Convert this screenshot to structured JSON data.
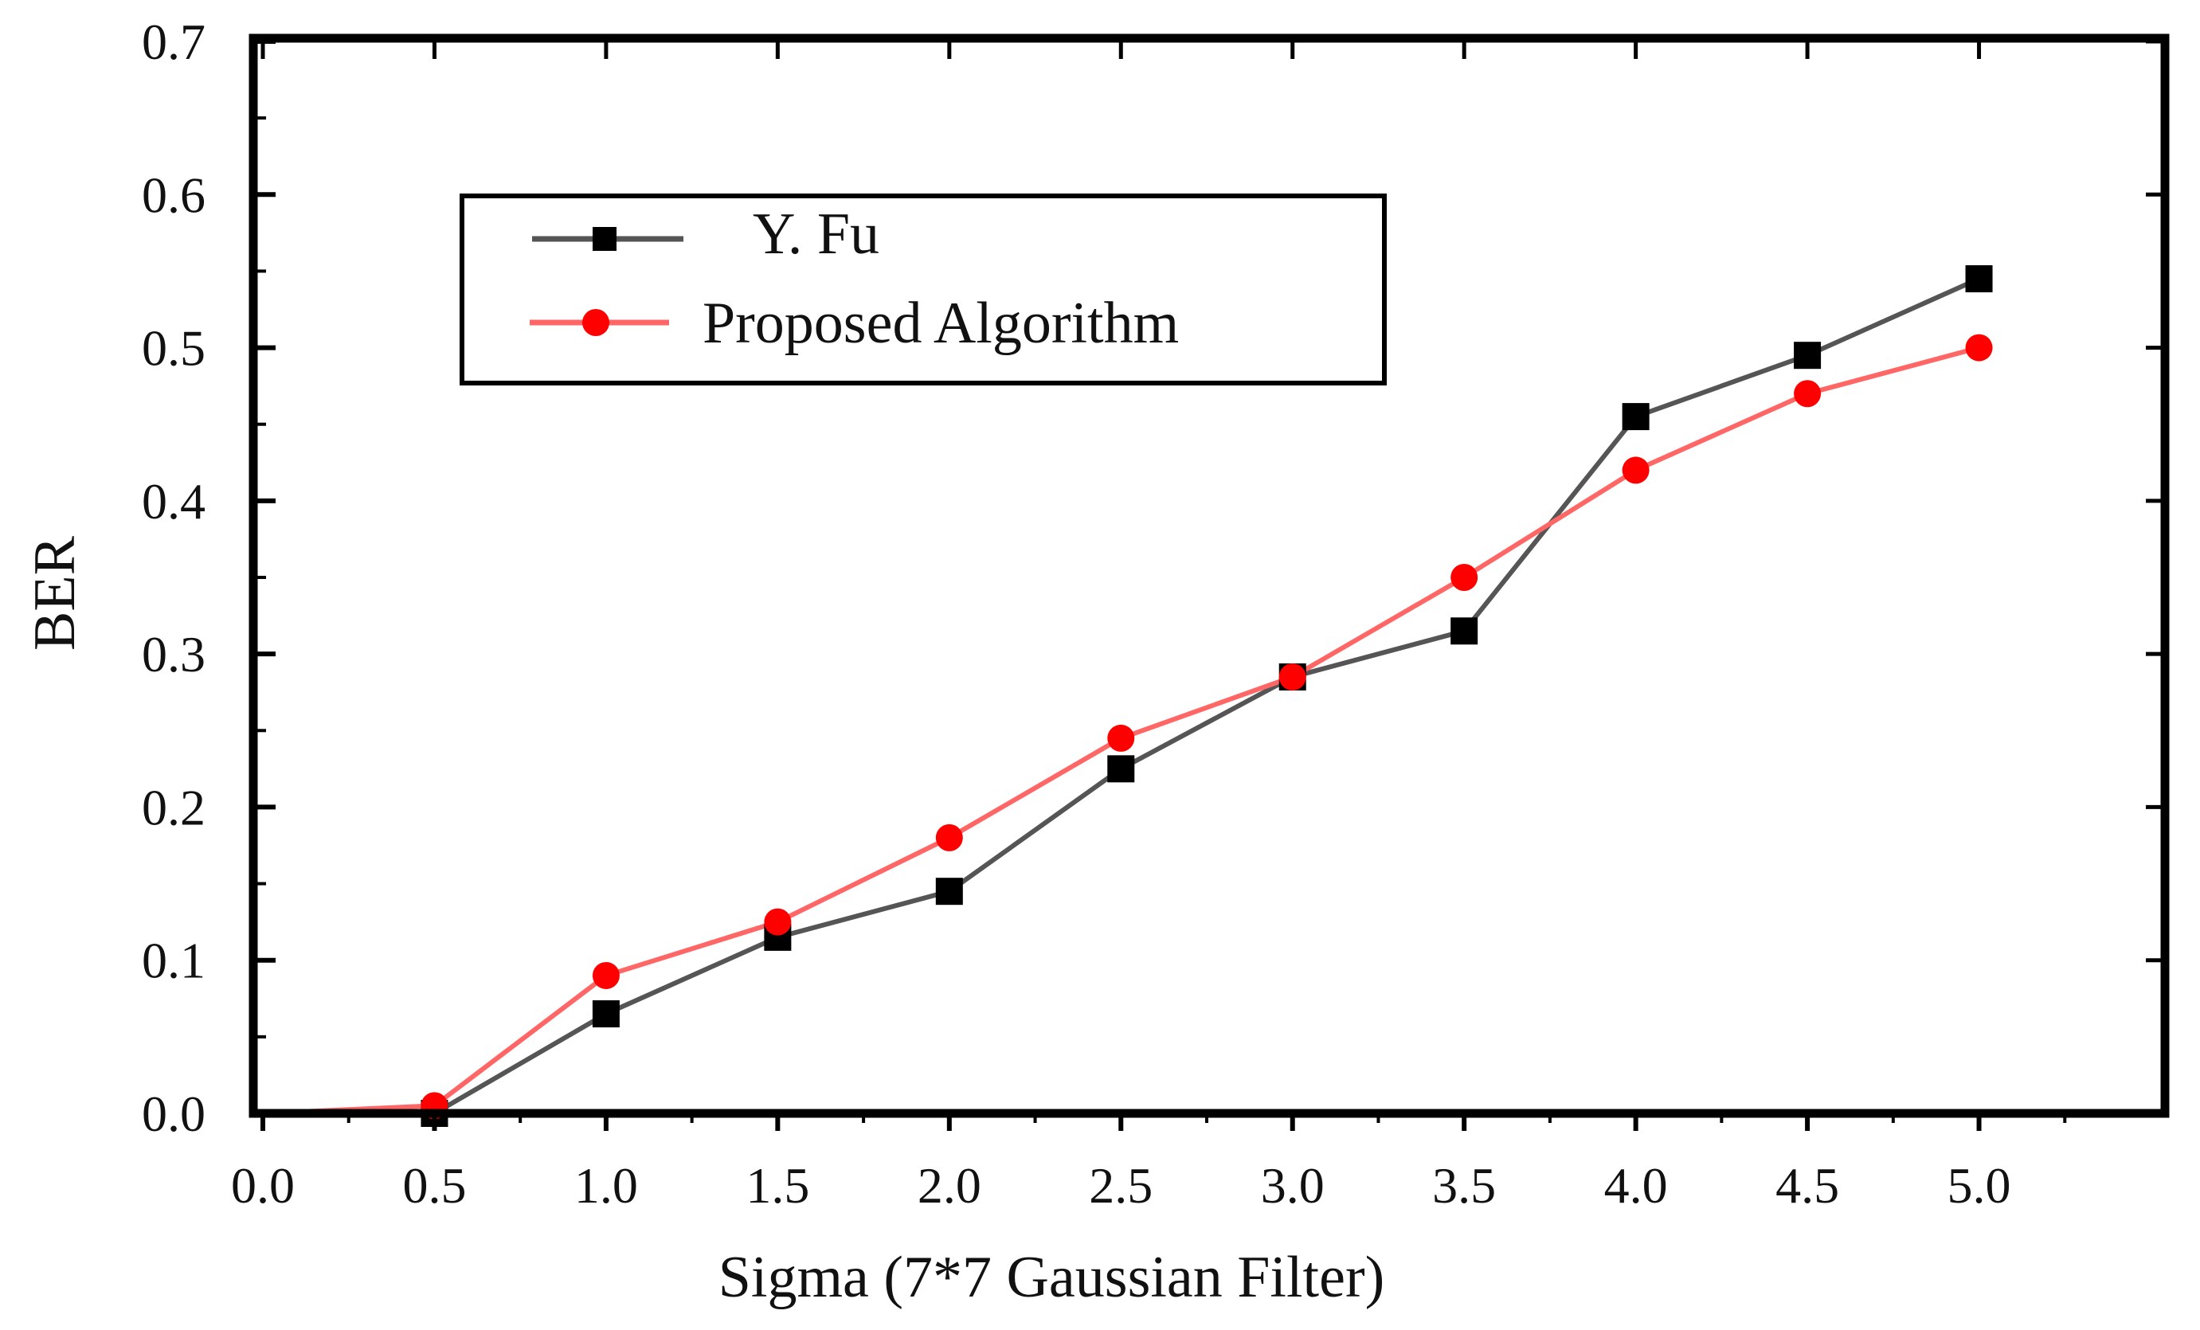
{
  "chart_data": {
    "type": "line",
    "title": "",
    "xlabel": "Sigma (7*7 Gaussian Filter)",
    "ylabel": "BER",
    "xlim": [
      0.0,
      5.5
    ],
    "ylim": [
      0.0,
      0.7
    ],
    "x_ticks": [
      "0.0",
      "0.5",
      "1.0",
      "1.5",
      "2.0",
      "2.5",
      "3.0",
      "3.5",
      "4.0",
      "4.5",
      "5.0"
    ],
    "y_ticks": [
      "0.0",
      "0.1",
      "0.2",
      "0.3",
      "0.4",
      "0.5",
      "0.6",
      "0.7"
    ],
    "grid": false,
    "legend_position": "top-left",
    "x": [
      0.5,
      1.0,
      1.5,
      2.0,
      2.5,
      3.0,
      3.5,
      4.0,
      4.5,
      5.0
    ],
    "series": [
      {
        "name": "Y. Fu",
        "marker": "square",
        "color": "#000000",
        "line_color": "#555555",
        "values": [
          0.0,
          0.065,
          0.115,
          0.145,
          0.225,
          0.285,
          0.315,
          0.455,
          0.495,
          0.545
        ]
      },
      {
        "name": "Proposed Algorithm",
        "marker": "circle",
        "color": "#ff0000",
        "line_color": "#ff6666",
        "values": [
          0.005,
          0.09,
          0.125,
          0.18,
          0.245,
          0.285,
          0.35,
          0.42,
          0.47,
          0.5
        ]
      }
    ]
  }
}
